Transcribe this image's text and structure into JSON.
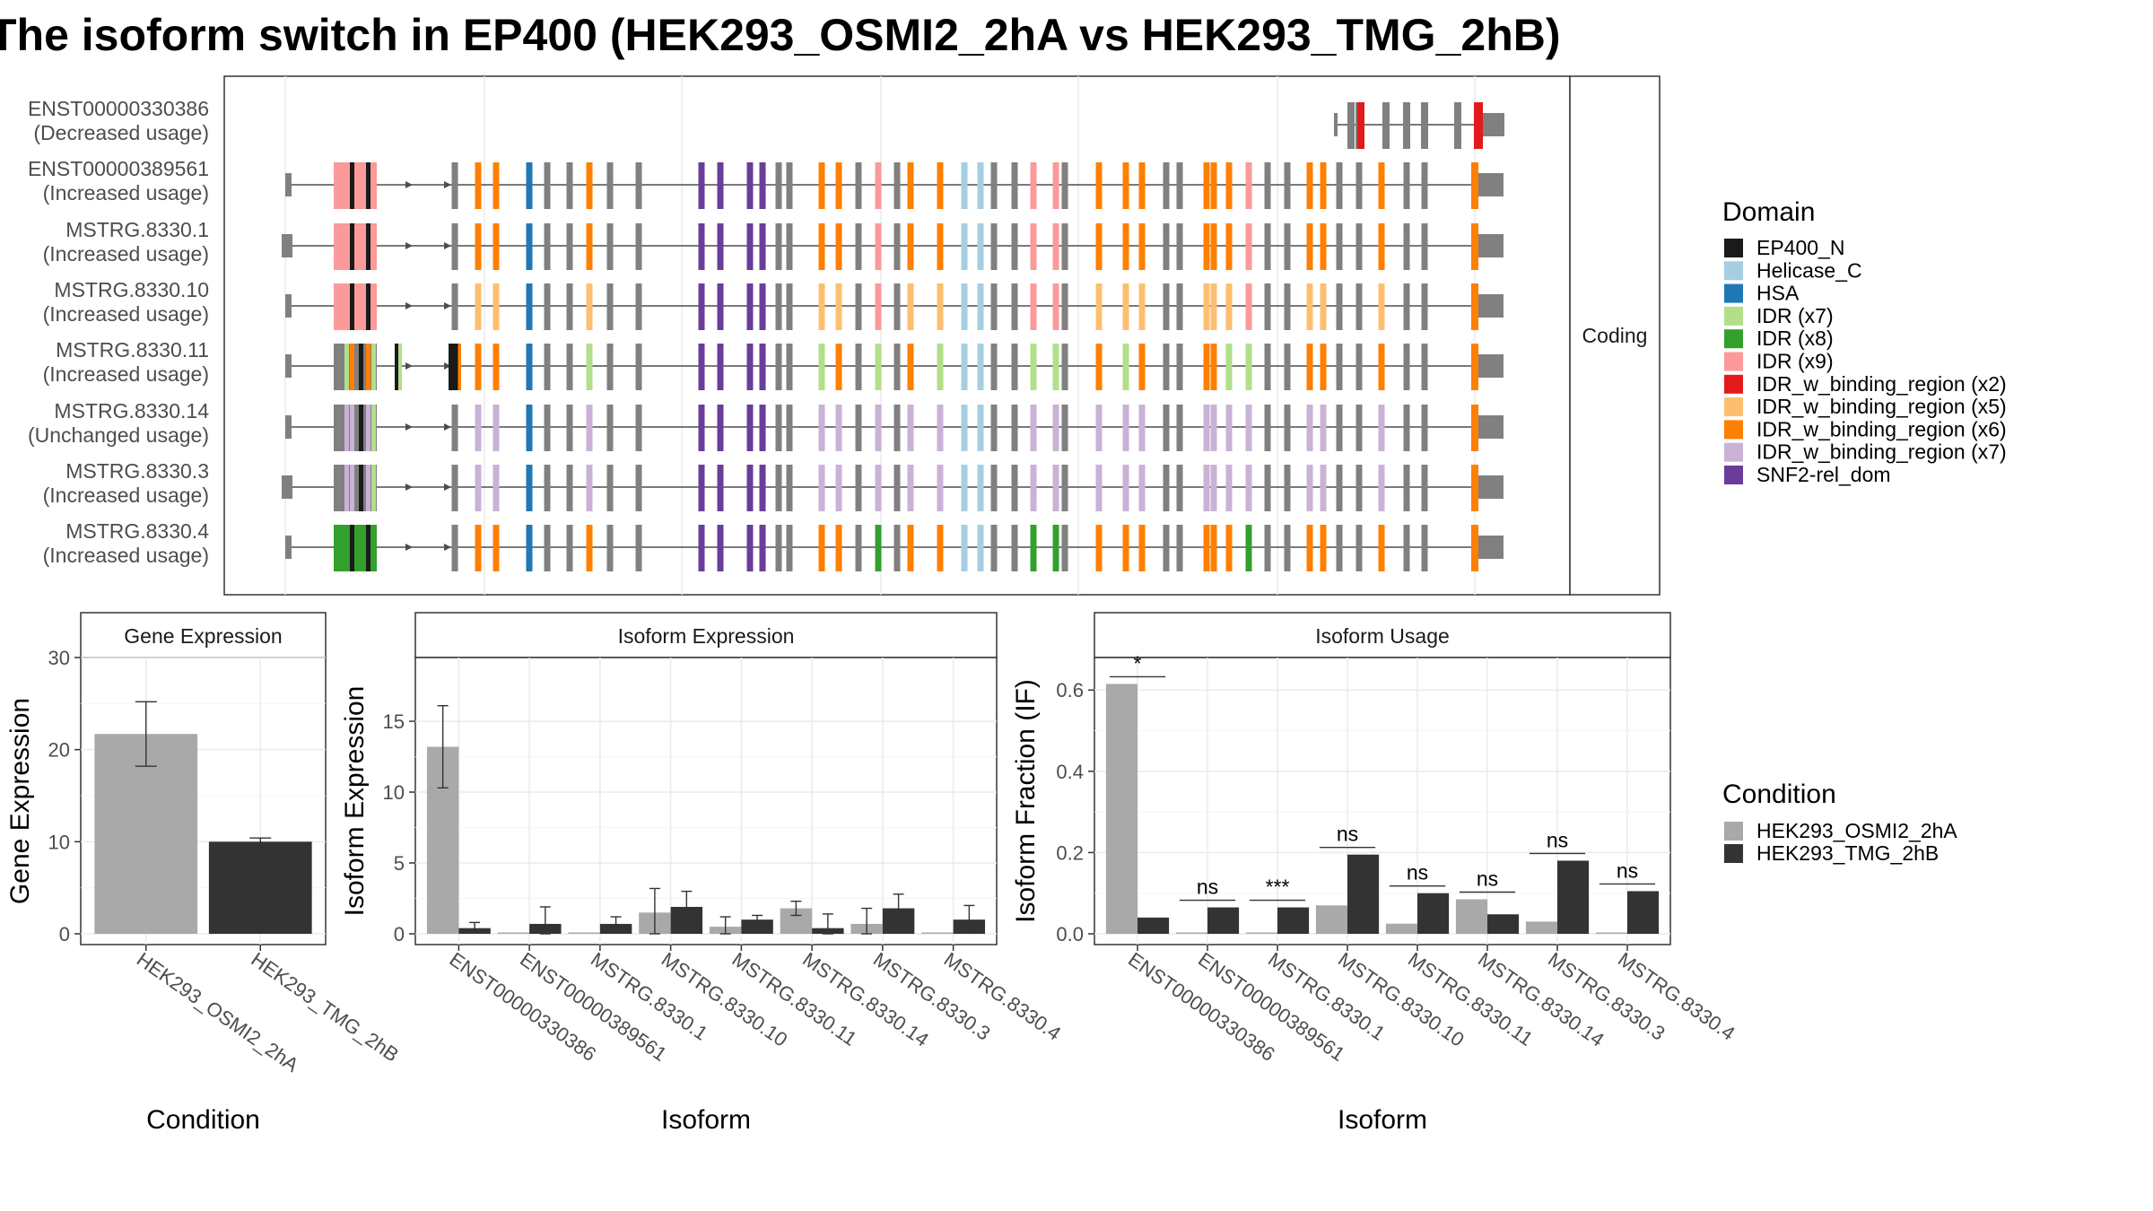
{
  "title": "The isoform switch in EP400 (HEK293_OSMI2_2hA vs HEK293_TMG_2hB)",
  "colors": {
    "cond_a": "#a9a9a9",
    "cond_b": "#333333",
    "domains": {
      "EP400_N": "#1a1a1a",
      "Helicase_C": "#a6cee3",
      "HSA": "#1f78b4",
      "IDR (x7)": "#b2df8a",
      "IDR (x8)": "#33a02c",
      "IDR (x9)": "#fb9a99",
      "IDR_w_binding_region (x2)": "#e31a1c",
      "IDR_w_binding_region (x5)": "#fdbf6f",
      "IDR_w_binding_region (x6)": "#ff7f00",
      "IDR_w_binding_region (x7)": "#cab2d6",
      "SNF2-rel_dom": "#6a3d9a"
    },
    "noncoding_exon": "#808080"
  },
  "structure": {
    "strip": "Coding",
    "isoforms": [
      {
        "id": "ENST00000330386",
        "usage": "(Decreased usage)"
      },
      {
        "id": "ENST00000389561",
        "usage": "(Increased usage)"
      },
      {
        "id": "MSTRG.8330.1",
        "usage": "(Increased usage)"
      },
      {
        "id": "MSTRG.8330.10",
        "usage": "(Increased usage)"
      },
      {
        "id": "MSTRG.8330.11",
        "usage": "(Increased usage)"
      },
      {
        "id": "MSTRG.8330.14",
        "usage": "(Unchanged usage)"
      },
      {
        "id": "MSTRG.8330.3",
        "usage": "(Increased usage)"
      },
      {
        "id": "MSTRG.8330.4",
        "usage": "(Increased usage)"
      }
    ]
  },
  "legend_domain": {
    "title": "Domain",
    "items": [
      "EP400_N",
      "Helicase_C",
      "HSA",
      "IDR (x7)",
      "IDR (x8)",
      "IDR (x9)",
      "IDR_w_binding_region (x2)",
      "IDR_w_binding_region (x5)",
      "IDR_w_binding_region (x6)",
      "IDR_w_binding_region (x7)",
      "SNF2-rel_dom"
    ]
  },
  "legend_condition": {
    "title": "Condition",
    "items": [
      "HEK293_OSMI2_2hA",
      "HEK293_TMG_2hB"
    ]
  },
  "chart_data": [
    {
      "type": "bar",
      "title": "Gene Expression",
      "xlabel": "Condition",
      "ylabel": "Gene Expression",
      "ylim": [
        0,
        30
      ],
      "yticks": [
        0,
        10,
        20,
        30
      ],
      "categories": [
        "HEK293_OSMI2_2hA",
        "HEK293_TMG_2hB"
      ],
      "values": [
        21.7,
        10.0
      ],
      "error_low": [
        18.2,
        9.6
      ],
      "error_high": [
        25.2,
        10.4
      ]
    },
    {
      "type": "bar",
      "title": "Isoform Expression",
      "xlabel": "Isoform",
      "ylabel": "Isoform Expression",
      "ylim": [
        0,
        19.5
      ],
      "yticks": [
        0,
        5,
        10,
        15
      ],
      "categories": [
        "ENST00000330386",
        "ENST00000389561",
        "MSTRG.8330.1",
        "MSTRG.8330.10",
        "MSTRG.8330.11",
        "MSTRG.8330.14",
        "MSTRG.8330.3",
        "MSTRG.8330.4"
      ],
      "series": [
        {
          "name": "HEK293_OSMI2_2hA",
          "values": [
            13.2,
            0.0,
            0.0,
            1.5,
            0.5,
            1.8,
            0.7,
            0.0
          ],
          "error_low": [
            10.3,
            0.0,
            0.0,
            0.0,
            0.0,
            1.3,
            0.0,
            0.0
          ],
          "error_high": [
            16.1,
            0.0,
            0.0,
            3.2,
            1.2,
            2.3,
            1.8,
            0.0
          ]
        },
        {
          "name": "HEK293_TMG_2hB",
          "values": [
            0.4,
            0.7,
            0.7,
            1.9,
            1.0,
            0.4,
            1.8,
            1.0
          ],
          "error_low": [
            0.1,
            0.0,
            0.3,
            0.8,
            0.7,
            0.0,
            0.8,
            0.1
          ],
          "error_high": [
            0.8,
            1.9,
            1.2,
            3.0,
            1.3,
            1.4,
            2.8,
            2.0
          ]
        }
      ]
    },
    {
      "type": "bar",
      "title": "Isoform Usage",
      "xlabel": "Isoform",
      "ylabel": "Isoform Fraction (IF)",
      "ylim": [
        0,
        0.68
      ],
      "yticks": [
        0.0,
        0.2,
        0.4,
        0.6
      ],
      "ytick_labels": [
        "0.0",
        "0.2",
        "0.4",
        "0.6"
      ],
      "categories": [
        "ENST00000330386",
        "ENST00000389561",
        "MSTRG.8330.1",
        "MSTRG.8330.10",
        "MSTRG.8330.11",
        "MSTRG.8330.14",
        "MSTRG.8330.3",
        "MSTRG.8330.4"
      ],
      "series": [
        {
          "name": "HEK293_OSMI2_2hA",
          "values": [
            0.615,
            0.0,
            0.0,
            0.07,
            0.025,
            0.085,
            0.03,
            0.0
          ]
        },
        {
          "name": "HEK293_TMG_2hB",
          "values": [
            0.04,
            0.065,
            0.065,
            0.195,
            0.1,
            0.048,
            0.18,
            0.105
          ]
        }
      ],
      "significance": [
        "*",
        "ns",
        "***",
        "ns",
        "ns",
        "ns",
        "ns",
        "ns"
      ]
    }
  ]
}
